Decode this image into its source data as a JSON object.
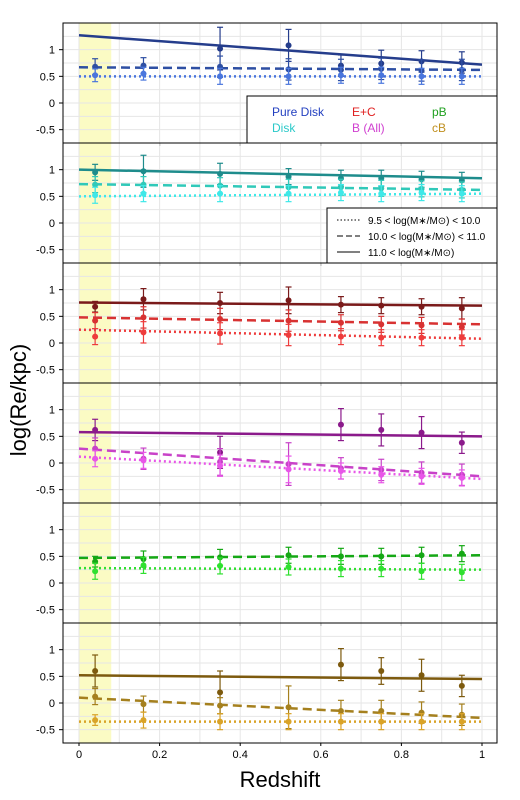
{
  "figure": {
    "ylabel": "log(Re/kpc)",
    "xlabel": "Redshift",
    "legend_types": {
      "pure_disk": "Pure Disk",
      "disk": "Disk",
      "ec": "E+C",
      "b_all": "B (All)",
      "pb": "pB",
      "cb": "cB"
    },
    "legend_mass": [
      {
        "style": "dotted",
        "label": "9.5 < log(M∗/M⊙) < 10.0"
      },
      {
        "style": "dashed",
        "label": "10.0 < log(M∗/M⊙) < 11.0"
      },
      {
        "style": "solid",
        "label": "11.0 < log(M∗/M⊙)"
      }
    ],
    "highlight_band": {
      "x": [
        0,
        0.08
      ],
      "color": "#fbfbc4"
    }
  },
  "chart_data": [
    {
      "type": "line",
      "panel": "Pure Disk",
      "xlim": [
        0,
        1
      ],
      "ylim": [
        -0.75,
        1.5
      ],
      "xticks": [
        "0",
        "0.2",
        "0.4",
        "0.6",
        "0.8",
        "1"
      ],
      "yticks": [
        "-0.5",
        "0",
        "0.5",
        "1"
      ],
      "grid": true,
      "lines": [
        {
          "style": "solid",
          "color": "#253d8c",
          "x": [
            0,
            1
          ],
          "y": [
            1.27,
            0.72
          ]
        },
        {
          "style": "dashed",
          "color": "#2e4fa3",
          "x": [
            0,
            1
          ],
          "y": [
            0.67,
            0.62
          ]
        },
        {
          "style": "dotted",
          "color": "#4a76dd",
          "x": [
            0,
            1
          ],
          "y": [
            0.5,
            0.5
          ]
        }
      ],
      "points": [
        {
          "color": "#253d8c",
          "x": [
            0.35,
            0.52,
            0.65,
            0.75,
            0.85,
            0.95
          ],
          "y": [
            1.02,
            1.08,
            0.7,
            0.74,
            0.78,
            0.76
          ],
          "err": [
            0.4,
            0.3,
            0.2,
            0.25,
            0.2,
            0.2
          ]
        },
        {
          "color": "#2e4fa3",
          "x": [
            0.04,
            0.16,
            0.35,
            0.52,
            0.65,
            0.75,
            0.85,
            0.95
          ],
          "y": [
            0.68,
            0.7,
            0.68,
            0.63,
            0.62,
            0.64,
            0.61,
            0.62
          ],
          "err": [
            0.15,
            0.15,
            0.2,
            0.2,
            0.2,
            0.2,
            0.2,
            0.2
          ]
        },
        {
          "color": "#4a76dd",
          "x": [
            0.04,
            0.16,
            0.35,
            0.52,
            0.65,
            0.75,
            0.85,
            0.95
          ],
          "y": [
            0.52,
            0.55,
            0.5,
            0.5,
            0.52,
            0.52,
            0.5,
            0.5
          ],
          "err": [
            0.12,
            0.12,
            0.15,
            0.15,
            0.15,
            0.15,
            0.15,
            0.15
          ]
        }
      ]
    },
    {
      "type": "line",
      "panel": "Disk",
      "xlim": [
        0,
        1
      ],
      "ylim": [
        -0.75,
        1.5
      ],
      "xticks": [
        "0",
        "0.2",
        "0.4",
        "0.6",
        "0.8",
        "1"
      ],
      "yticks": [
        "-0.5",
        "0",
        "0.5",
        "1"
      ],
      "grid": true,
      "lines": [
        {
          "style": "solid",
          "color": "#1e8c8c",
          "x": [
            0,
            1
          ],
          "y": [
            1.0,
            0.84
          ]
        },
        {
          "style": "dashed",
          "color": "#30c9b9",
          "x": [
            0,
            1
          ],
          "y": [
            0.73,
            0.62
          ]
        },
        {
          "style": "dotted",
          "color": "#3fe8e8",
          "x": [
            0,
            1
          ],
          "y": [
            0.5,
            0.55
          ]
        }
      ],
      "points": [
        {
          "color": "#1e8c8c",
          "x": [
            0.04,
            0.16,
            0.35,
            0.52,
            0.65,
            0.75,
            0.85,
            0.95
          ],
          "y": [
            0.95,
            0.97,
            0.92,
            0.87,
            0.84,
            0.84,
            0.82,
            0.8
          ],
          "err": [
            0.15,
            0.3,
            0.2,
            0.15,
            0.15,
            0.15,
            0.15,
            0.15
          ]
        },
        {
          "color": "#30c9b9",
          "x": [
            0.04,
            0.16,
            0.35,
            0.52,
            0.65,
            0.75,
            0.85,
            0.95
          ],
          "y": [
            0.72,
            0.72,
            0.7,
            0.67,
            0.67,
            0.65,
            0.64,
            0.62
          ],
          "err": [
            0.15,
            0.15,
            0.15,
            0.15,
            0.15,
            0.15,
            0.15,
            0.15
          ]
        },
        {
          "color": "#3fe8e8",
          "x": [
            0.04,
            0.16,
            0.35,
            0.52,
            0.65,
            0.75,
            0.85,
            0.95
          ],
          "y": [
            0.52,
            0.55,
            0.55,
            0.55,
            0.57,
            0.55,
            0.57,
            0.55
          ],
          "err": [
            0.15,
            0.15,
            0.15,
            0.15,
            0.15,
            0.15,
            0.15,
            0.15
          ]
        }
      ]
    },
    {
      "type": "line",
      "panel": "E+C",
      "xlim": [
        0,
        1
      ],
      "ylim": [
        -0.75,
        1.5
      ],
      "xticks": [
        "0",
        "0.2",
        "0.4",
        "0.6",
        "0.8",
        "1"
      ],
      "yticks": [
        "-0.5",
        "0",
        "0.5",
        "1"
      ],
      "grid": true,
      "lines": [
        {
          "style": "solid",
          "color": "#7a1a1a",
          "x": [
            0,
            1
          ],
          "y": [
            0.76,
            0.7
          ]
        },
        {
          "style": "dashed",
          "color": "#d83232",
          "x": [
            0,
            1
          ],
          "y": [
            0.48,
            0.35
          ]
        },
        {
          "style": "dotted",
          "color": "#ee3c3c",
          "x": [
            0,
            1
          ],
          "y": [
            0.25,
            0.08
          ]
        }
      ],
      "points": [
        {
          "color": "#7a1a1a",
          "x": [
            0.04,
            0.16,
            0.35,
            0.52,
            0.65,
            0.75,
            0.85,
            0.95
          ],
          "y": [
            0.68,
            0.82,
            0.75,
            0.8,
            0.72,
            0.7,
            0.68,
            0.65
          ],
          "err": [
            0.1,
            0.2,
            0.2,
            0.25,
            0.15,
            0.15,
            0.15,
            0.2
          ]
        },
        {
          "color": "#d83232",
          "x": [
            0.04,
            0.16,
            0.35,
            0.52,
            0.65,
            0.75,
            0.85,
            0.95
          ],
          "y": [
            0.42,
            0.48,
            0.45,
            0.42,
            0.38,
            0.35,
            0.33,
            0.3
          ],
          "err": [
            0.15,
            0.2,
            0.2,
            0.2,
            0.15,
            0.15,
            0.15,
            0.15
          ]
        },
        {
          "color": "#ee3c3c",
          "x": [
            0.04,
            0.16,
            0.35,
            0.52,
            0.65,
            0.75,
            0.85,
            0.95
          ],
          "y": [
            0.12,
            0.2,
            0.18,
            0.15,
            0.12,
            0.1,
            0.1,
            0.1
          ],
          "err": [
            0.15,
            0.2,
            0.2,
            0.2,
            0.15,
            0.15,
            0.15,
            0.15
          ]
        }
      ]
    },
    {
      "type": "line",
      "panel": "B (All)",
      "xlim": [
        0,
        1
      ],
      "ylim": [
        -0.75,
        1.5
      ],
      "xticks": [
        "0",
        "0.2",
        "0.4",
        "0.6",
        "0.8",
        "1"
      ],
      "yticks": [
        "-0.5",
        "0",
        "0.5",
        "1"
      ],
      "grid": true,
      "lines": [
        {
          "style": "solid",
          "color": "#8b1a8b",
          "x": [
            0,
            1
          ],
          "y": [
            0.58,
            0.5
          ]
        },
        {
          "style": "dashed",
          "color": "#c842c8",
          "x": [
            0,
            1
          ],
          "y": [
            0.27,
            -0.25
          ]
        },
        {
          "style": "dotted",
          "color": "#e856e8",
          "x": [
            0,
            1
          ],
          "y": [
            0.12,
            -0.3
          ]
        }
      ],
      "points": [
        {
          "color": "#8b1a8b",
          "x": [
            0.04,
            0.35,
            0.65,
            0.75,
            0.85,
            0.95
          ],
          "y": [
            0.62,
            0.2,
            0.72,
            0.62,
            0.57,
            0.38
          ],
          "err": [
            0.2,
            0.3,
            0.3,
            0.3,
            0.3,
            0.2
          ]
        },
        {
          "color": "#c842c8",
          "x": [
            0.04,
            0.16,
            0.35,
            0.52,
            0.65,
            0.75,
            0.85,
            0.95
          ],
          "y": [
            0.27,
            0.08,
            0.02,
            -0.02,
            -0.1,
            -0.13,
            -0.18,
            -0.22
          ],
          "err": [
            0.2,
            0.2,
            0.25,
            0.4,
            0.2,
            0.2,
            0.2,
            0.2
          ]
        },
        {
          "color": "#e856e8",
          "x": [
            0.04,
            0.16,
            0.35,
            0.52,
            0.65,
            0.75,
            0.85,
            0.95
          ],
          "y": [
            0.08,
            0.05,
            -0.05,
            -0.12,
            -0.15,
            -0.22,
            -0.25,
            -0.28
          ],
          "err": [
            0.15,
            0.15,
            0.2,
            0.25,
            0.15,
            0.15,
            0.15,
            0.15
          ]
        }
      ]
    },
    {
      "type": "line",
      "panel": "pB",
      "xlim": [
        0,
        1
      ],
      "ylim": [
        -0.75,
        1.5
      ],
      "xticks": [
        "0",
        "0.2",
        "0.4",
        "0.6",
        "0.8",
        "1"
      ],
      "yticks": [
        "-0.5",
        "0",
        "0.5",
        "1"
      ],
      "grid": true,
      "lines": [
        {
          "style": "dashed",
          "color": "#15a815",
          "x": [
            0,
            1
          ],
          "y": [
            0.47,
            0.52
          ]
        },
        {
          "style": "dotted",
          "color": "#30e030",
          "x": [
            0,
            1
          ],
          "y": [
            0.28,
            0.25
          ]
        }
      ],
      "points": [
        {
          "color": "#15a815",
          "x": [
            0.04,
            0.16,
            0.35,
            0.52,
            0.65,
            0.75,
            0.85,
            0.95
          ],
          "y": [
            0.4,
            0.45,
            0.48,
            0.52,
            0.5,
            0.5,
            0.52,
            0.55
          ],
          "err": [
            0.1,
            0.15,
            0.15,
            0.15,
            0.15,
            0.15,
            0.15,
            0.15
          ]
        },
        {
          "color": "#30e030",
          "x": [
            0.04,
            0.16,
            0.35,
            0.52,
            0.65,
            0.75,
            0.85,
            0.95
          ],
          "y": [
            0.22,
            0.33,
            0.32,
            0.3,
            0.27,
            0.27,
            0.22,
            0.2
          ],
          "err": [
            0.15,
            0.15,
            0.15,
            0.15,
            0.15,
            0.15,
            0.15,
            0.15
          ]
        }
      ]
    },
    {
      "type": "line",
      "panel": "cB",
      "xlim": [
        0,
        1
      ],
      "ylim": [
        -0.75,
        1.5
      ],
      "xticks": [
        "0",
        "0.2",
        "0.4",
        "0.6",
        "0.8",
        "1"
      ],
      "yticks": [
        "-0.5",
        "0",
        "0.5",
        "1"
      ],
      "grid": true,
      "lines": [
        {
          "style": "solid",
          "color": "#7d5a0e",
          "x": [
            0,
            1
          ],
          "y": [
            0.52,
            0.45
          ]
        },
        {
          "style": "dashed",
          "color": "#a5801e",
          "x": [
            0,
            1
          ],
          "y": [
            0.1,
            -0.28
          ]
        },
        {
          "style": "dotted",
          "color": "#d9a328",
          "x": [
            0,
            1
          ],
          "y": [
            -0.35,
            -0.35
          ]
        }
      ],
      "points": [
        {
          "color": "#7d5a0e",
          "x": [
            0.04,
            0.35,
            0.65,
            0.75,
            0.85,
            0.95
          ],
          "y": [
            0.6,
            0.2,
            0.72,
            0.6,
            0.52,
            0.32
          ],
          "err": [
            0.3,
            0.4,
            0.3,
            0.25,
            0.3,
            0.2
          ]
        },
        {
          "color": "#a5801e",
          "x": [
            0.04,
            0.16,
            0.35,
            0.52,
            0.65,
            0.75,
            0.85,
            0.95
          ],
          "y": [
            0.12,
            -0.02,
            -0.05,
            -0.08,
            -0.15,
            -0.15,
            -0.18,
            -0.22
          ],
          "err": [
            0.15,
            0.15,
            0.15,
            0.4,
            0.2,
            0.2,
            0.2,
            0.2
          ]
        },
        {
          "color": "#d9a328",
          "x": [
            0.04,
            0.16,
            0.35,
            0.52,
            0.65,
            0.75,
            0.85,
            0.95
          ],
          "y": [
            -0.32,
            -0.32,
            -0.35,
            -0.35,
            -0.35,
            -0.35,
            -0.35,
            -0.35
          ],
          "err": [
            0.1,
            0.15,
            0.15,
            0.15,
            0.15,
            0.15,
            0.15,
            0.15
          ]
        }
      ]
    }
  ]
}
